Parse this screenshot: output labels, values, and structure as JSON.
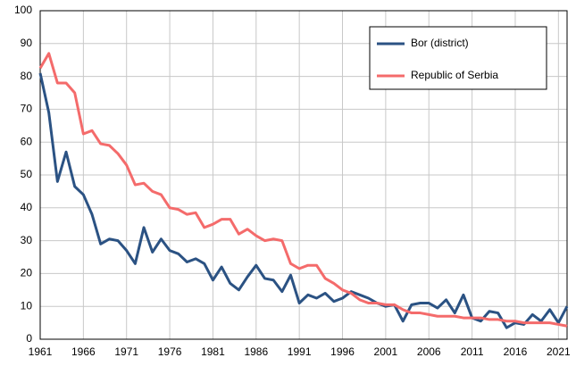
{
  "chart_data": {
    "type": "line",
    "x": [
      1961,
      1962,
      1963,
      1964,
      1965,
      1966,
      1967,
      1968,
      1969,
      1970,
      1971,
      1972,
      1973,
      1974,
      1975,
      1976,
      1977,
      1978,
      1979,
      1980,
      1981,
      1982,
      1983,
      1984,
      1985,
      1986,
      1987,
      1988,
      1989,
      1990,
      1991,
      1992,
      1993,
      1994,
      1995,
      1996,
      1997,
      1998,
      1999,
      2000,
      2001,
      2002,
      2003,
      2004,
      2005,
      2006,
      2007,
      2008,
      2009,
      2010,
      2011,
      2012,
      2013,
      2014,
      2015,
      2016,
      2017,
      2018,
      2019,
      2020,
      2021,
      2022
    ],
    "series": [
      {
        "name": "Bor (district)",
        "color": "#2b5283",
        "values": [
          81,
          69,
          48,
          57,
          46.5,
          44,
          38,
          29,
          30.5,
          30,
          27,
          23,
          34,
          26.5,
          30.5,
          27,
          26,
          23.5,
          24.5,
          23,
          18,
          22,
          17,
          15,
          19,
          22.5,
          18.5,
          18,
          14.5,
          19.5,
          11,
          13.5,
          12.5,
          14,
          11.5,
          12.5,
          14.5,
          13.5,
          12.5,
          11,
          10,
          10.5,
          5.5,
          10.5,
          11,
          11,
          9.5,
          12,
          8,
          13.5,
          6.5,
          5.5,
          8.5,
          8,
          3.5,
          5,
          4.5,
          7.5,
          5.5,
          9,
          5,
          10
        ]
      },
      {
        "name": "Republic of Serbia",
        "color": "#f46b6b",
        "values": [
          82.5,
          87,
          78,
          78,
          75,
          62.5,
          63.5,
          59.5,
          59,
          56.5,
          53,
          47,
          47.5,
          45,
          44,
          40,
          39.5,
          38,
          38.5,
          34,
          35,
          36.5,
          36.5,
          32,
          33.5,
          31.5,
          30,
          30.5,
          30,
          23,
          21.5,
          22.5,
          22.5,
          18.5,
          17,
          15,
          14,
          12,
          11,
          11,
          10.5,
          10.5,
          9,
          8,
          8,
          7.5,
          7,
          7,
          7,
          6.5,
          6.5,
          6.5,
          6,
          6,
          5.5,
          5.5,
          5,
          5,
          5,
          5,
          4.5,
          4
        ]
      }
    ],
    "xlim": [
      1961,
      2022
    ],
    "xticks": [
      1961,
      1966,
      1971,
      1976,
      1981,
      1986,
      1991,
      1996,
      2001,
      2006,
      2011,
      2016,
      2021
    ],
    "ylim": [
      0,
      100
    ],
    "yticks": [
      0,
      10,
      20,
      30,
      40,
      50,
      60,
      70,
      80,
      90,
      100
    ],
    "grid": true,
    "legend": "upper right"
  }
}
